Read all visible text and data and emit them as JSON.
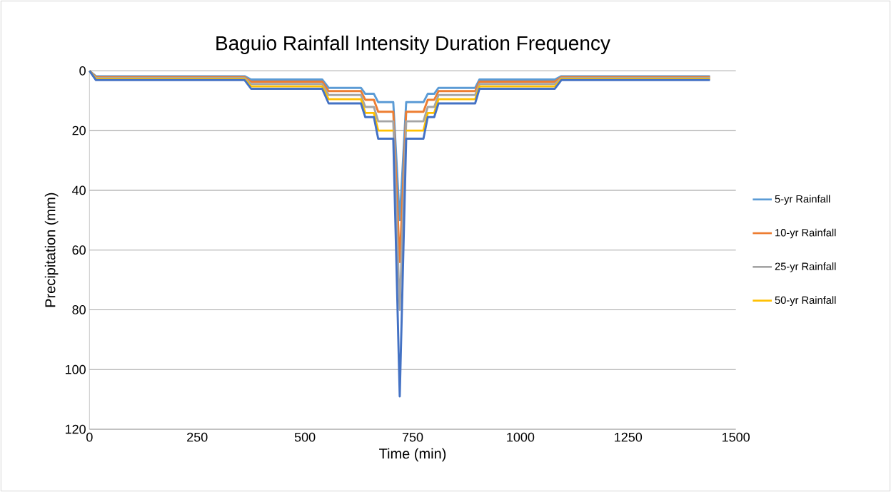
{
  "chart_data": {
    "type": "line",
    "title": "Baguio Rainfall Intensity Duration Frequency",
    "xlabel": "Time (min)",
    "ylabel": "Precipitation (mm)",
    "x": [
      0,
      15,
      360,
      375,
      540,
      555,
      630,
      640,
      660,
      670,
      705,
      720,
      735,
      775,
      785,
      800,
      810,
      895,
      905,
      1080,
      1095,
      1440
    ],
    "series": [
      {
        "name": "5-yr Rainfall",
        "color": "#5b9bd5",
        "values": [
          0,
          1.8,
          1.8,
          2.9,
          2.9,
          5.7,
          5.7,
          7.7,
          7.7,
          10.5,
          10.5,
          50,
          10.5,
          10.5,
          7.7,
          7.7,
          5.7,
          5.7,
          2.9,
          2.9,
          1.8,
          1.8
        ]
      },
      {
        "name": "10-yr Rainfall",
        "color": "#ed7d31",
        "values": [
          0,
          2.1,
          2.1,
          3.6,
          3.6,
          6.8,
          6.8,
          9.7,
          9.7,
          13.7,
          13.7,
          64,
          13.7,
          13.7,
          9.7,
          9.7,
          6.8,
          6.8,
          3.6,
          3.6,
          2.1,
          2.1
        ]
      },
      {
        "name": "25-yr Rainfall",
        "color": "#a5a5a5",
        "values": [
          0,
          2.4,
          2.4,
          4.4,
          4.4,
          8.1,
          8.1,
          12.1,
          12.1,
          16.9,
          16.9,
          80,
          16.9,
          16.9,
          12.1,
          12.1,
          8.1,
          8.1,
          4.4,
          4.4,
          2.4,
          2.4
        ]
      },
      {
        "name": "50-yr Rainfall",
        "color": "#ffc000",
        "values": [
          0,
          2.7,
          2.7,
          5.2,
          5.2,
          9.5,
          9.5,
          14.1,
          14.1,
          20,
          20,
          null,
          20,
          20,
          14.1,
          14.1,
          9.5,
          9.5,
          5.2,
          5.2,
          2.7,
          2.7
        ]
      },
      {
        "color": "#4472c4",
        "values": [
          0,
          3.1,
          3.1,
          6,
          6,
          10.9,
          10.9,
          15.5,
          15.5,
          22.7,
          22.7,
          109,
          22.7,
          22.7,
          15.5,
          15.5,
          10.9,
          10.9,
          6,
          6,
          3.1,
          3.1
        ]
      }
    ],
    "xlim": [
      0,
      1500
    ],
    "xticks": [
      0,
      250,
      500,
      750,
      1000,
      1250,
      1500
    ],
    "ylim": [
      120,
      0
    ],
    "yticks": [
      0,
      20,
      40,
      60,
      80,
      100,
      120
    ],
    "grid": "y",
    "legend": "right",
    "marker": "none",
    "line_style": "solid"
  }
}
